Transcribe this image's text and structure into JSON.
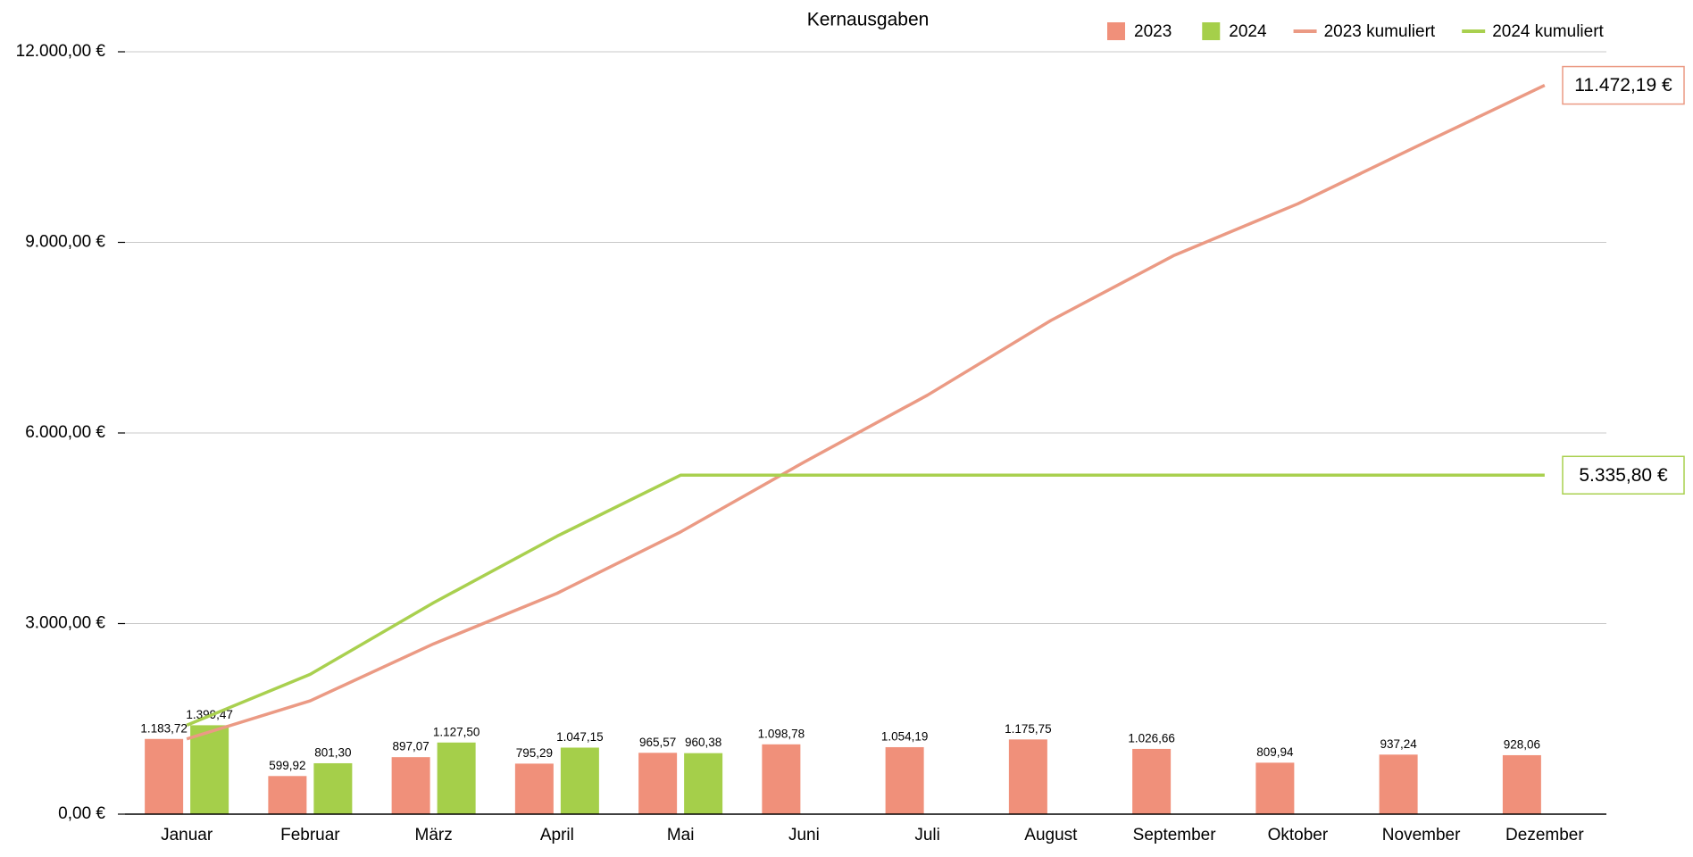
{
  "chart_data": {
    "type": "bar",
    "title": "Kernausgaben",
    "categories": [
      "Januar",
      "Februar",
      "März",
      "April",
      "Mai",
      "Juni",
      "Juli",
      "August",
      "September",
      "Oktober",
      "November",
      "Dezember"
    ],
    "ylim": [
      0,
      12000
    ],
    "yticks": [
      {
        "value": 0,
        "label": "0,00 €"
      },
      {
        "value": 3000,
        "label": "3.000,00 €"
      },
      {
        "value": 6000,
        "label": "6.000,00 €"
      },
      {
        "value": 9000,
        "label": "9.000,00 €"
      },
      {
        "value": 12000,
        "label": "12.000,00 €"
      }
    ],
    "grid": true,
    "legend": "top-right",
    "series": [
      {
        "name": "2023",
        "type": "bar",
        "color": "#f0907a",
        "values": [
          1183.72,
          599.92,
          897.07,
          795.29,
          965.57,
          1098.78,
          1054.19,
          1175.75,
          1026.66,
          809.94,
          937.24,
          928.06
        ],
        "value_labels": [
          "1.183,72",
          "599,92",
          "897,07",
          "795,29",
          "965,57",
          "1.098,78",
          "1.054,19",
          "1.175,75",
          "1.026,66",
          "809,94",
          "937,24",
          "928,06"
        ]
      },
      {
        "name": "2024",
        "type": "bar",
        "color": "#a5cf4a",
        "values": [
          1399.47,
          801.3,
          1127.5,
          1047.15,
          960.38,
          null,
          null,
          null,
          null,
          null,
          null,
          null
        ],
        "value_labels": [
          "1.399,47",
          "801,30",
          "1.127,50",
          "1.047,15",
          "960,38",
          null,
          null,
          null,
          null,
          null,
          null,
          null
        ]
      },
      {
        "name": "2023 kumuliert",
        "type": "line",
        "color": "#eb9a84",
        "values": [
          1183.72,
          1783.64,
          2680.71,
          3476.0,
          4441.57,
          5540.35,
          6594.54,
          7770.29,
          8796.95,
          9606.89,
          10544.13,
          11472.19
        ],
        "end_label": "11.472,19 €"
      },
      {
        "name": "2024 kumuliert",
        "type": "line",
        "color": "#a9d04f",
        "values": [
          1399.47,
          2200.77,
          3328.27,
          4375.42,
          5335.8,
          5335.8,
          5335.8,
          5335.8,
          5335.8,
          5335.8,
          5335.8,
          5335.8
        ],
        "end_label": "5.335,80 €"
      }
    ]
  }
}
